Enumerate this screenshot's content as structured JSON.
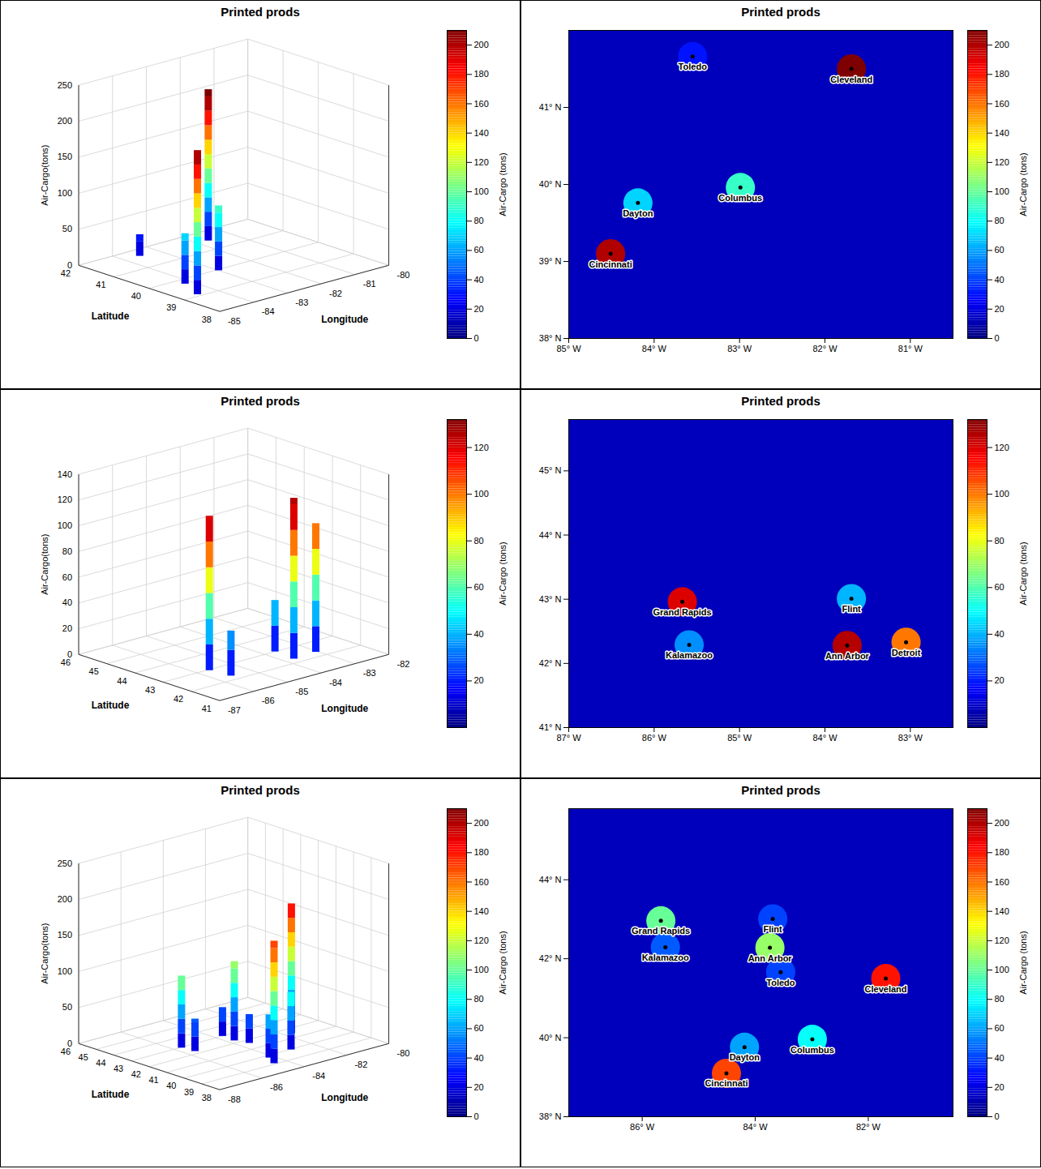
{
  "chart_data": [
    {
      "type": "surface3d",
      "title": "Printed prods",
      "xlabel": "Longitude",
      "ylabel": "Latitude",
      "zlabel": "Air-Cargo(tons)",
      "xlim": [
        -85,
        -80
      ],
      "xticks": [
        -85,
        -84,
        -83,
        -82,
        -81,
        -80
      ],
      "ylim": [
        38,
        42
      ],
      "yticks": [
        38,
        39,
        40,
        41,
        42
      ],
      "zlim": [
        0,
        250
      ],
      "zticks": [
        0,
        50,
        100,
        150,
        200,
        250
      ],
      "colorbar": {
        "label": "Air-Cargo (tons)",
        "range": [
          0,
          210
        ],
        "ticks": [
          0,
          20,
          40,
          60,
          80,
          100,
          120,
          140,
          160,
          180,
          200
        ]
      },
      "points": [
        {
          "lon": -83.55,
          "lat": 41.66,
          "value": 30
        },
        {
          "lon": -81.69,
          "lat": 41.5,
          "value": 210
        },
        {
          "lon": -82.99,
          "lat": 39.96,
          "value": 90
        },
        {
          "lon": -84.19,
          "lat": 39.76,
          "value": 70
        },
        {
          "lon": -84.51,
          "lat": 39.1,
          "value": 200
        }
      ]
    },
    {
      "type": "map_heat",
      "title": "Printed prods",
      "xlim": [
        -85,
        -80.5
      ],
      "xticks": [
        {
          "value": -85,
          "label": "85° W"
        },
        {
          "value": -84,
          "label": "84° W"
        },
        {
          "value": -83,
          "label": "83° W"
        },
        {
          "value": -82,
          "label": "82° W"
        },
        {
          "value": -81,
          "label": "81° W"
        }
      ],
      "ylim": [
        38,
        42
      ],
      "yticks": [
        {
          "value": 38,
          "label": "38° N"
        },
        {
          "value": 39,
          "label": "39° N"
        },
        {
          "value": 40,
          "label": "40° N"
        },
        {
          "value": 41,
          "label": "41° N"
        }
      ],
      "colorbar": {
        "label": "Air-Cargo (tons)",
        "range": [
          0,
          210
        ],
        "ticks": [
          0,
          20,
          40,
          60,
          80,
          100,
          120,
          140,
          160,
          180,
          200
        ]
      },
      "points": [
        {
          "name": "Toledo",
          "lon": -83.55,
          "lat": 41.66,
          "value": 30
        },
        {
          "name": "Cleveland",
          "lon": -81.69,
          "lat": 41.5,
          "value": 210
        },
        {
          "name": "Columbus",
          "lon": -82.99,
          "lat": 39.96,
          "value": 90
        },
        {
          "name": "Dayton",
          "lon": -84.19,
          "lat": 39.76,
          "value": 70
        },
        {
          "name": "Cincinnati",
          "lon": -84.51,
          "lat": 39.1,
          "value": 200
        }
      ]
    },
    {
      "type": "surface3d",
      "title": "Printed prods",
      "xlabel": "Longitude",
      "ylabel": "Latitude",
      "zlabel": "Air-Cargo(tons)",
      "xlim": [
        -87,
        -82
      ],
      "xticks": [
        -87,
        -86,
        -85,
        -84,
        -83,
        -82
      ],
      "ylim": [
        41,
        46
      ],
      "yticks": [
        41,
        42,
        43,
        44,
        45,
        46
      ],
      "zlim": [
        0,
        140
      ],
      "zticks": [
        0,
        20,
        40,
        60,
        80,
        100,
        120,
        140
      ],
      "colorbar": {
        "label": "Air-Cargo (tons)",
        "range": [
          0,
          132
        ],
        "ticks": [
          20,
          40,
          60,
          80,
          100,
          120
        ]
      },
      "points": [
        {
          "lon": -85.67,
          "lat": 42.96,
          "value": 120
        },
        {
          "lon": -85.59,
          "lat": 42.29,
          "value": 35
        },
        {
          "lon": -83.69,
          "lat": 43.01,
          "value": 40
        },
        {
          "lon": -83.74,
          "lat": 42.28,
          "value": 125
        },
        {
          "lon": -83.05,
          "lat": 42.33,
          "value": 100
        }
      ]
    },
    {
      "type": "map_heat",
      "title": "Printed prods",
      "xlim": [
        -87,
        -82.5
      ],
      "xticks": [
        {
          "value": -87,
          "label": "87° W"
        },
        {
          "value": -86,
          "label": "86° W"
        },
        {
          "value": -85,
          "label": "85° W"
        },
        {
          "value": -84,
          "label": "84° W"
        },
        {
          "value": -83,
          "label": "83° W"
        }
      ],
      "ylim": [
        41,
        45.8
      ],
      "yticks": [
        {
          "value": 41,
          "label": "41° N"
        },
        {
          "value": 42,
          "label": "42° N"
        },
        {
          "value": 43,
          "label": "43° N"
        },
        {
          "value": 44,
          "label": "44° N"
        },
        {
          "value": 45,
          "label": "45° N"
        }
      ],
      "colorbar": {
        "label": "Air-Cargo (tons)",
        "range": [
          0,
          132
        ],
        "ticks": [
          20,
          40,
          60,
          80,
          100,
          120
        ]
      },
      "points": [
        {
          "name": "Grand Rapids",
          "lon": -85.67,
          "lat": 42.96,
          "value": 120
        },
        {
          "name": "Kalamazoo",
          "lon": -85.59,
          "lat": 42.29,
          "value": 35
        },
        {
          "name": "Flint",
          "lon": -83.69,
          "lat": 43.01,
          "value": 40
        },
        {
          "name": "Ann Arbor",
          "lon": -83.74,
          "lat": 42.28,
          "value": 125
        },
        {
          "name": "Detroit",
          "lon": -83.05,
          "lat": 42.33,
          "value": 100
        }
      ]
    },
    {
      "type": "surface3d",
      "title": "Printed prods",
      "xlabel": "Longitude",
      "ylabel": "Latitude",
      "zlabel": "Air-Cargo(tons)",
      "xlim": [
        -88,
        -80
      ],
      "xticks": [
        -88,
        -86,
        -84,
        -82,
        -80
      ],
      "ylim": [
        38,
        46
      ],
      "yticks": [
        38,
        39,
        40,
        41,
        42,
        43,
        44,
        45,
        46
      ],
      "zlim": [
        0,
        250
      ],
      "zticks": [
        0,
        50,
        100,
        150,
        200,
        250
      ],
      "colorbar": {
        "label": "Air-Cargo (tons)",
        "range": [
          0,
          210
        ],
        "ticks": [
          0,
          20,
          40,
          60,
          80,
          100,
          120,
          140,
          160,
          180,
          200
        ]
      },
      "points": [
        {
          "lon": -85.67,
          "lat": 42.96,
          "value": 100
        },
        {
          "lon": -85.59,
          "lat": 42.29,
          "value": 45
        },
        {
          "lon": -83.69,
          "lat": 43.01,
          "value": 40
        },
        {
          "lon": -83.74,
          "lat": 42.28,
          "value": 110
        },
        {
          "lon": -83.55,
          "lat": 41.66,
          "value": 40
        },
        {
          "lon": -81.69,
          "lat": 41.5,
          "value": 180
        },
        {
          "lon": -82.99,
          "lat": 39.96,
          "value": 80
        },
        {
          "lon": -84.19,
          "lat": 39.76,
          "value": 60
        },
        {
          "lon": -84.51,
          "lat": 39.1,
          "value": 170
        }
      ]
    },
    {
      "type": "map_heat",
      "title": "Printed prods",
      "xlim": [
        -87.3,
        -80.5
      ],
      "xticks": [
        {
          "value": -86,
          "label": "86° W"
        },
        {
          "value": -84,
          "label": "84° W"
        },
        {
          "value": -82,
          "label": "82° W"
        }
      ],
      "ylim": [
        38,
        45.8
      ],
      "yticks": [
        {
          "value": 38,
          "label": "38° N"
        },
        {
          "value": 40,
          "label": "40° N"
        },
        {
          "value": 42,
          "label": "42° N"
        },
        {
          "value": 44,
          "label": "44° N"
        }
      ],
      "colorbar": {
        "label": "Air-Cargo (tons)",
        "range": [
          0,
          210
        ],
        "ticks": [
          0,
          20,
          40,
          60,
          80,
          100,
          120,
          140,
          160,
          180,
          200
        ]
      },
      "points": [
        {
          "name": "Grand Rapids",
          "lon": -85.67,
          "lat": 42.96,
          "value": 100
        },
        {
          "name": "Kalamazoo",
          "lon": -85.59,
          "lat": 42.29,
          "value": 45
        },
        {
          "name": "Flint",
          "lon": -83.69,
          "lat": 43.01,
          "value": 40
        },
        {
          "name": "Ann Arbor",
          "lon": -83.74,
          "lat": 42.28,
          "value": 110
        },
        {
          "name": "Toledo",
          "lon": -83.55,
          "lat": 41.66,
          "value": 40
        },
        {
          "name": "Cleveland",
          "lon": -81.69,
          "lat": 41.5,
          "value": 180
        },
        {
          "name": "Columbus",
          "lon": -82.99,
          "lat": 39.96,
          "value": 80
        },
        {
          "name": "Dayton",
          "lon": -84.19,
          "lat": 39.76,
          "value": 60
        },
        {
          "name": "Cincinnati",
          "lon": -84.51,
          "lat": 39.1,
          "value": 170
        }
      ]
    }
  ]
}
